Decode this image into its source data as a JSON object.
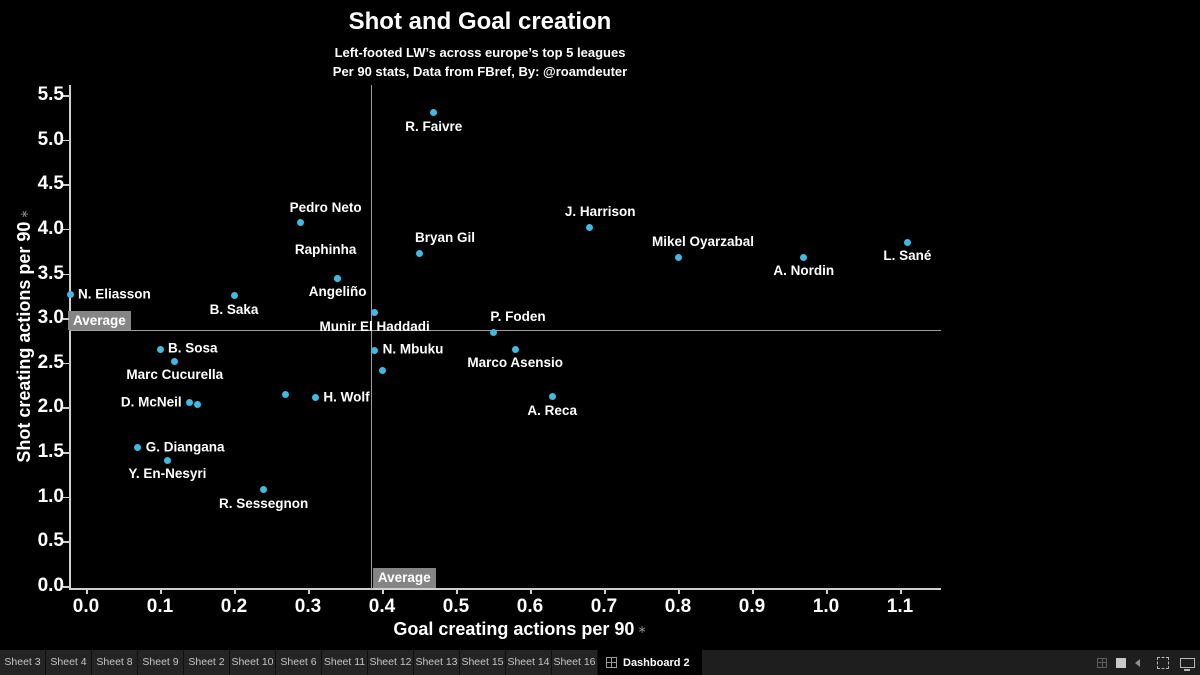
{
  "header": {
    "title": "Shot and Goal creation",
    "subtitle1": "Left-footed LW’s across europe’s top 5 leagues",
    "subtitle2": "Per 90 stats, Data from FBref, By: @roamdeuter"
  },
  "chart_data": {
    "type": "scatter",
    "title": "Shot and Goal creation",
    "xlabel": "Goal creating actions per 90",
    "ylabel": "Shot creating actions per 90",
    "xlim": [
      -0.02,
      1.15
    ],
    "ylim": [
      -0.02,
      5.61
    ],
    "x_ticks": [
      0.0,
      0.1,
      0.2,
      0.3,
      0.4,
      0.5,
      0.6,
      0.7,
      0.8,
      0.9,
      1.0,
      1.1
    ],
    "y_ticks": [
      0.0,
      0.5,
      1.0,
      1.5,
      2.0,
      2.5,
      3.0,
      3.5,
      4.0,
      4.5,
      5.0,
      5.5
    ],
    "x_average": 0.385,
    "y_average": 2.87,
    "average_label": "Average",
    "grid": false,
    "dot_color": "#3cbbe3",
    "average_line_color": "#9e9e9e",
    "average_box_color": "#858585",
    "points": [
      {
        "name": "R. Faivre",
        "x": 0.47,
        "y": 5.3,
        "label_pos": "below"
      },
      {
        "name": "Pedro Neto",
        "x": 0.29,
        "y": 4.07,
        "label_pos": "above",
        "ldx": 25
      },
      {
        "name": "J. Harrison",
        "x": 0.68,
        "y": 4.02,
        "label_pos": "above",
        "ldx": 11
      },
      {
        "name": "Bryan Gil",
        "x": 0.45,
        "y": 3.73,
        "label_pos": "above",
        "ldx": 26
      },
      {
        "name": "Mikel Oyarzabal",
        "x": 0.8,
        "y": 3.68,
        "label_pos": "above",
        "ldx": 25
      },
      {
        "name": "A. Nordin",
        "x": 0.97,
        "y": 3.68,
        "label_pos": "below"
      },
      {
        "name": "L. Sané",
        "x": 1.11,
        "y": 3.85,
        "label_pos": "below"
      },
      {
        "name": "N. Eliasson",
        "x": 0.0,
        "y": 3.26,
        "label_pos": "right",
        "pdx": -16
      },
      {
        "name": "B. Saka",
        "x": 0.2,
        "y": 3.25,
        "label_pos": "below"
      },
      {
        "name": "Raphinha",
        "x": 0.34,
        "y": 3.45,
        "label_pos": "above",
        "ldx": -12,
        "ldy": -13
      },
      {
        "name": "Angeliño",
        "x": 0.34,
        "y": 3.45,
        "label_pos": "below"
      },
      {
        "name": "Munir El Haddadi",
        "x": 0.39,
        "y": 3.06,
        "label_pos": "below"
      },
      {
        "name": "N. Mbuku",
        "x": 0.39,
        "y": 2.64,
        "label_pos": "right"
      },
      {
        "name": "",
        "x": 0.4,
        "y": 2.41
      },
      {
        "name": "P. Foden",
        "x": 0.55,
        "y": 2.84,
        "label_pos": "above",
        "ldx": 25
      },
      {
        "name": "Marco Asensio",
        "x": 0.58,
        "y": 2.65,
        "label_pos": "below"
      },
      {
        "name": "A. Reca",
        "x": 0.63,
        "y": 2.12,
        "label_pos": "below"
      },
      {
        "name": "B. Sosa",
        "x": 0.1,
        "y": 2.65,
        "label_pos": "right"
      },
      {
        "name": "Marc Cucurella",
        "x": 0.12,
        "y": 2.52,
        "label_pos": "below"
      },
      {
        "name": "D. McNeil",
        "x": 0.14,
        "y": 2.05,
        "label_pos": "left"
      },
      {
        "name": "",
        "x": 0.15,
        "y": 2.03
      },
      {
        "name": "",
        "x": 0.27,
        "y": 2.15
      },
      {
        "name": "H. Wolf",
        "x": 0.31,
        "y": 2.11,
        "label_pos": "right"
      },
      {
        "name": "G. Diangana",
        "x": 0.07,
        "y": 1.55,
        "label_pos": "right"
      },
      {
        "name": "Y. En-Nesyri",
        "x": 0.11,
        "y": 1.41,
        "label_pos": "below"
      },
      {
        "name": "R. Sessegnon",
        "x": 0.24,
        "y": 1.08,
        "label_pos": "below"
      }
    ]
  },
  "sort_icon_glyph": "∗",
  "tabs": {
    "sheets": [
      "Sheet 3",
      "Sheet 4",
      "Sheet 8",
      "Sheet 9",
      "Sheet 2",
      "Sheet 10",
      "Sheet 6",
      "Sheet 11",
      "Sheet 12",
      "Sheet 13",
      "Sheet 15",
      "Sheet 14",
      "Sheet 16"
    ],
    "active": "Dashboard 2"
  },
  "window_icons": [
    "grid-view-icon",
    "sheet-view-icon",
    "previous-sheet-icon",
    "fullscreen-icon",
    "presentation-mode-icon"
  ]
}
